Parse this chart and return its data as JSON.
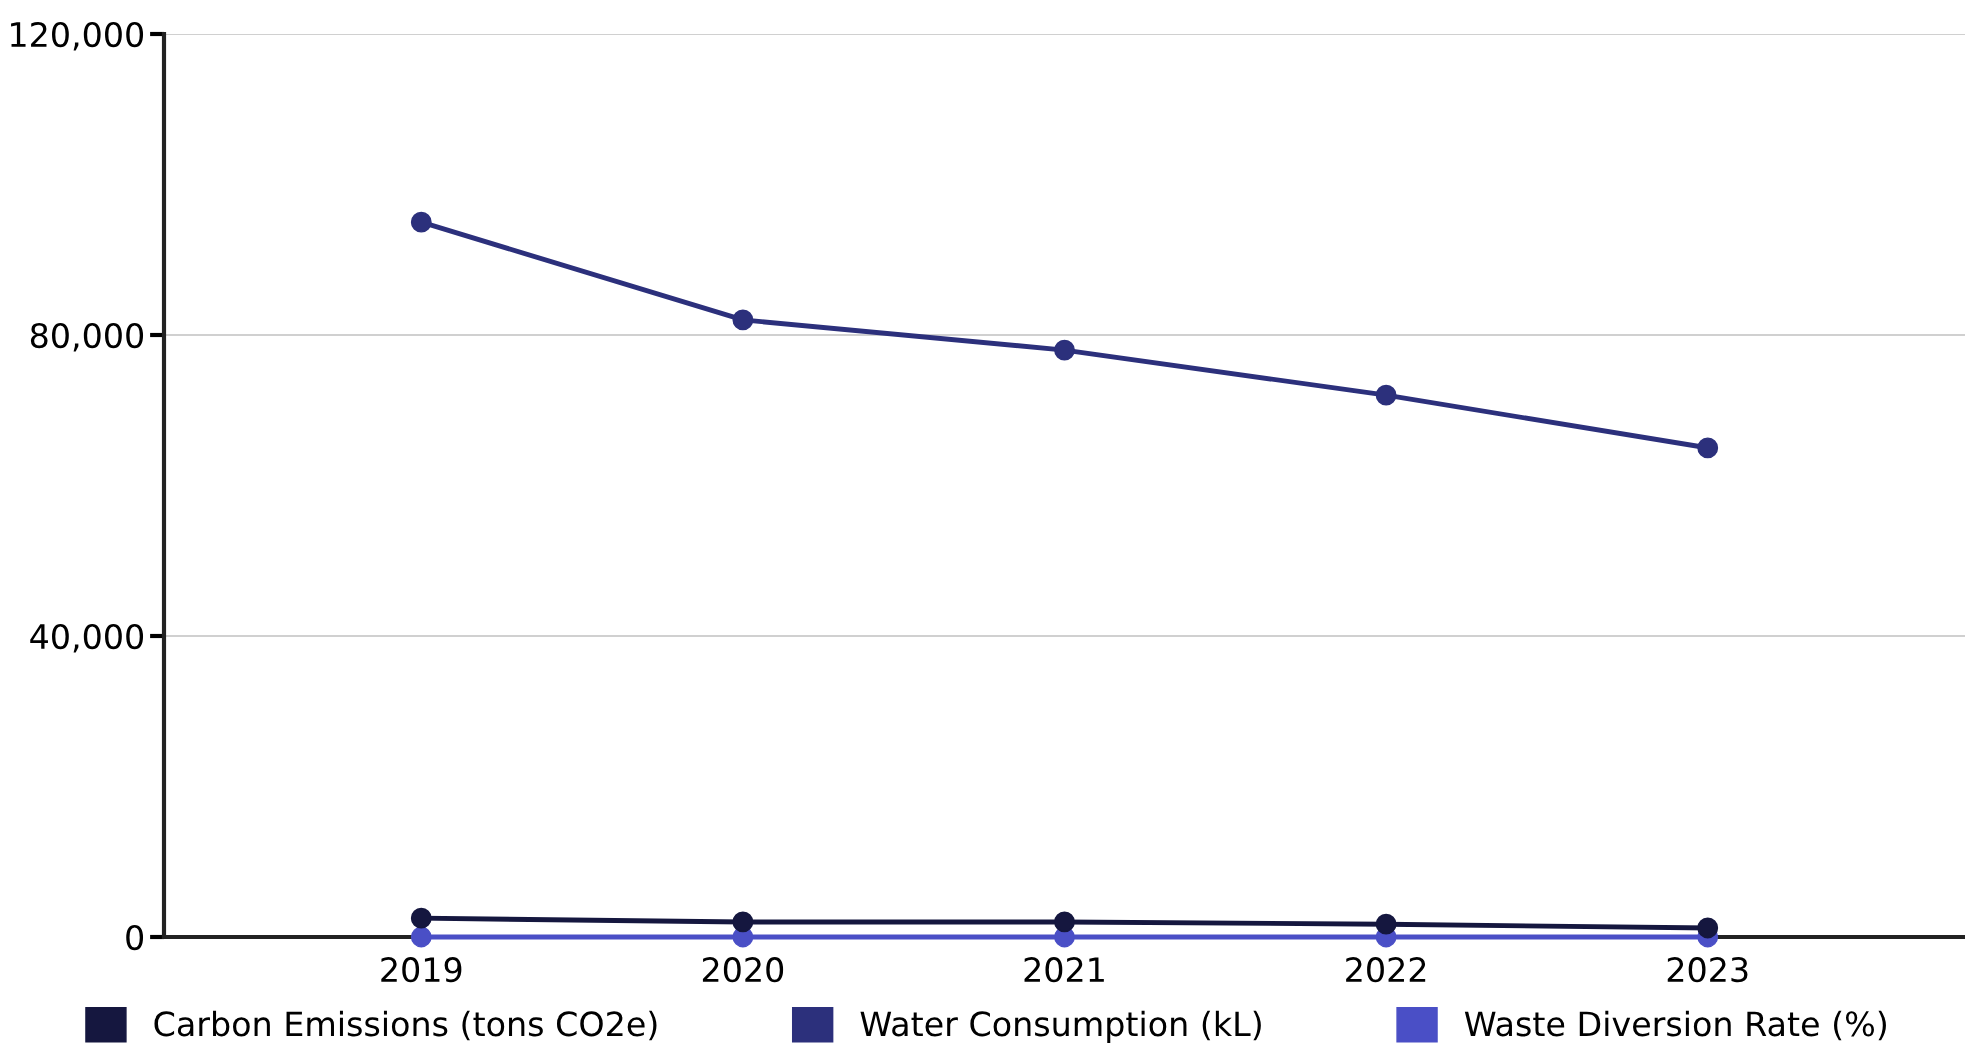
{
  "chart_data": {
    "type": "line",
    "categories": [
      "2019",
      "2020",
      "2021",
      "2022",
      "2023"
    ],
    "series": [
      {
        "name": "Carbon Emissions (tons CO2e)",
        "color": "#15173f",
        "values": [
          2500,
          2000,
          2000,
          1700,
          1200
        ]
      },
      {
        "name": "Water Consumption (kL)",
        "color": "#2c307c",
        "values": [
          95000,
          82000,
          78000,
          72000,
          65000
        ]
      },
      {
        "name": "Waste Diversion Rate (%)",
        "color": "#4a4fc6",
        "values": [
          0,
          0,
          0,
          0,
          0
        ]
      }
    ],
    "ylim": [
      0,
      120000
    ],
    "yticks": [
      {
        "value": 0,
        "label": "0"
      },
      {
        "value": 40000,
        "label": "40,000"
      },
      {
        "value": 80000,
        "label": "80,000"
      },
      {
        "value": 120000,
        "label": "120,000"
      }
    ],
    "grid": "y",
    "legend": "bottom left",
    "marker": "circle",
    "line_style": "solid"
  }
}
